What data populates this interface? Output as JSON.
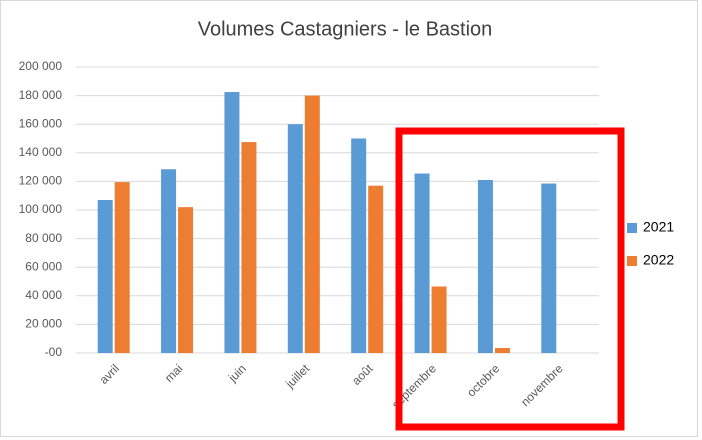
{
  "chart_data": {
    "type": "bar",
    "title": "Volumes Castagniers - le Bastion",
    "categories": [
      "avril",
      "mai",
      "juin",
      "juillet",
      "août",
      "septembre",
      "octobre",
      "novembre"
    ],
    "series": [
      {
        "name": "2021",
        "color": "#5b9bd5",
        "values": [
          107000,
          128500,
          182500,
          160000,
          150000,
          125500,
          121000,
          118500
        ]
      },
      {
        "name": "2022",
        "color": "#ed7d31",
        "values": [
          119500,
          102000,
          147500,
          180000,
          117000,
          46500,
          3500,
          null
        ]
      }
    ],
    "ylim": [
      0,
      200000
    ],
    "yticks": [
      {
        "value": 0,
        "label": "-00"
      },
      {
        "value": 20000,
        "label": "20 000"
      },
      {
        "value": 40000,
        "label": "40 000"
      },
      {
        "value": 60000,
        "label": "60 000"
      },
      {
        "value": 80000,
        "label": "80 000"
      },
      {
        "value": 100000,
        "label": "100 000"
      },
      {
        "value": 120000,
        "label": "120 000"
      },
      {
        "value": 140000,
        "label": "140 000"
      },
      {
        "value": 160000,
        "label": "160 000"
      },
      {
        "value": 180000,
        "label": "180 000"
      },
      {
        "value": 200000,
        "label": "200 000"
      }
    ],
    "grid": true,
    "legend": "right"
  }
}
